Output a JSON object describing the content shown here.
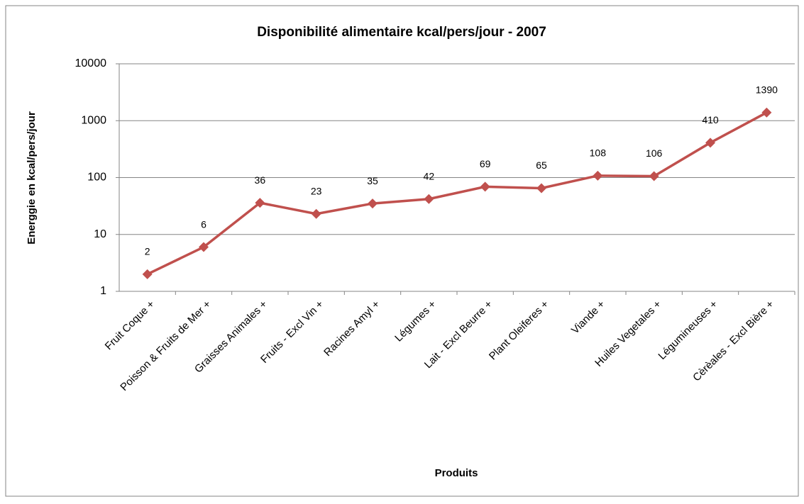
{
  "chart_data": {
    "type": "line",
    "title": "Disponibilité alimentaire kcal/pers/jour - 2007",
    "x_label": "Produits",
    "y_label": "Energgie en kcal/pers/jour",
    "categories": [
      "Fruit Coque +",
      "Poisson & Fruits de Mer +",
      "Graisses Animales +",
      "Fruits - Excl Vin +",
      "Racines Amyl +",
      "Légumes +",
      "Lait - Excl Beurre +",
      "Plant Oleiferes +",
      "Viande +",
      "Huiles Vegetales +",
      "Légumineuses +",
      "Cèrèales - Excl Bière +"
    ],
    "series": [
      {
        "name": "Energie",
        "color": "#c0504d",
        "values": [
          2,
          6,
          36,
          23,
          35,
          42,
          69,
          65,
          108,
          106,
          410,
          1390
        ]
      }
    ],
    "ylim": [
      1,
      10000
    ],
    "yticks": [
      1,
      10,
      100,
      1000,
      10000
    ],
    "log_scale": true,
    "grid": true,
    "data_labels": true
  }
}
